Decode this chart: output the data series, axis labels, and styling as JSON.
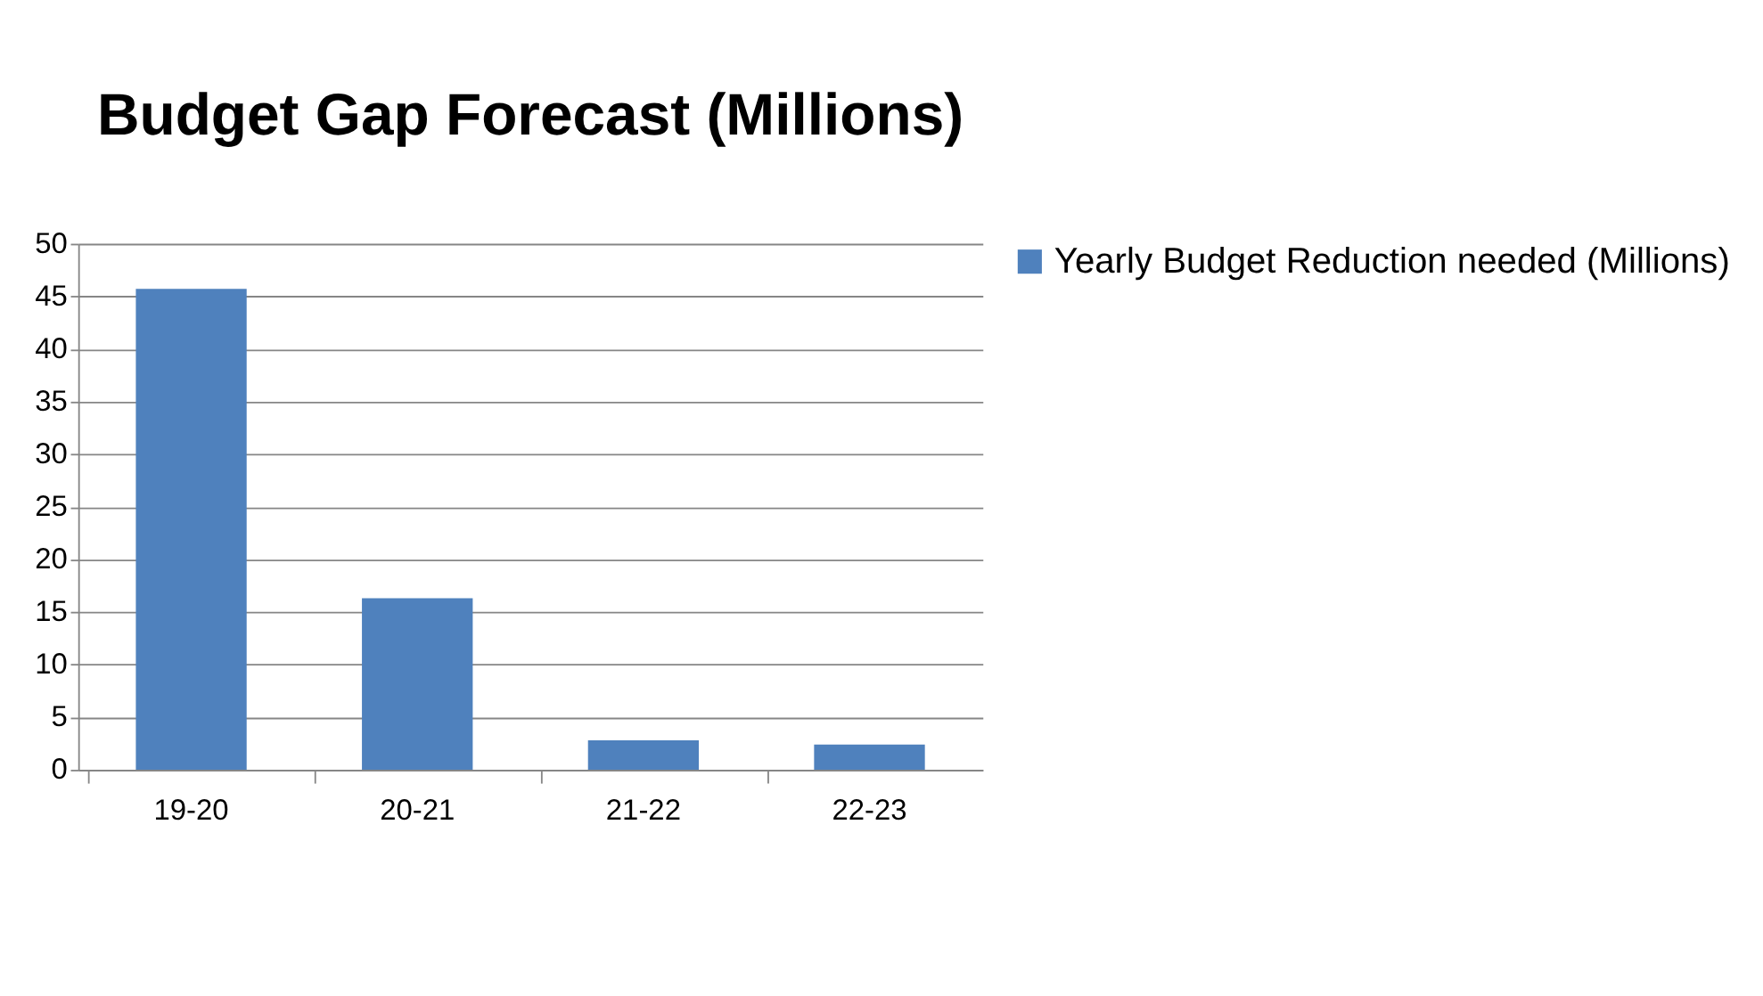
{
  "chart_data": {
    "type": "bar",
    "title": "Budget Gap Forecast (Millions)",
    "categories": [
      "19-20",
      "20-21",
      "21-22",
      "22-23"
    ],
    "series": [
      {
        "name": "Yearly Budget Reduction needed (Millions)",
        "color": "#4f81bd",
        "values": [
          45.7,
          16.3,
          2.8,
          2.4
        ]
      }
    ],
    "ylim": [
      0,
      50
    ],
    "yticks": [
      0,
      5,
      10,
      15,
      20,
      25,
      30,
      35,
      40,
      45,
      50
    ],
    "grid": "y",
    "legend": "right"
  }
}
